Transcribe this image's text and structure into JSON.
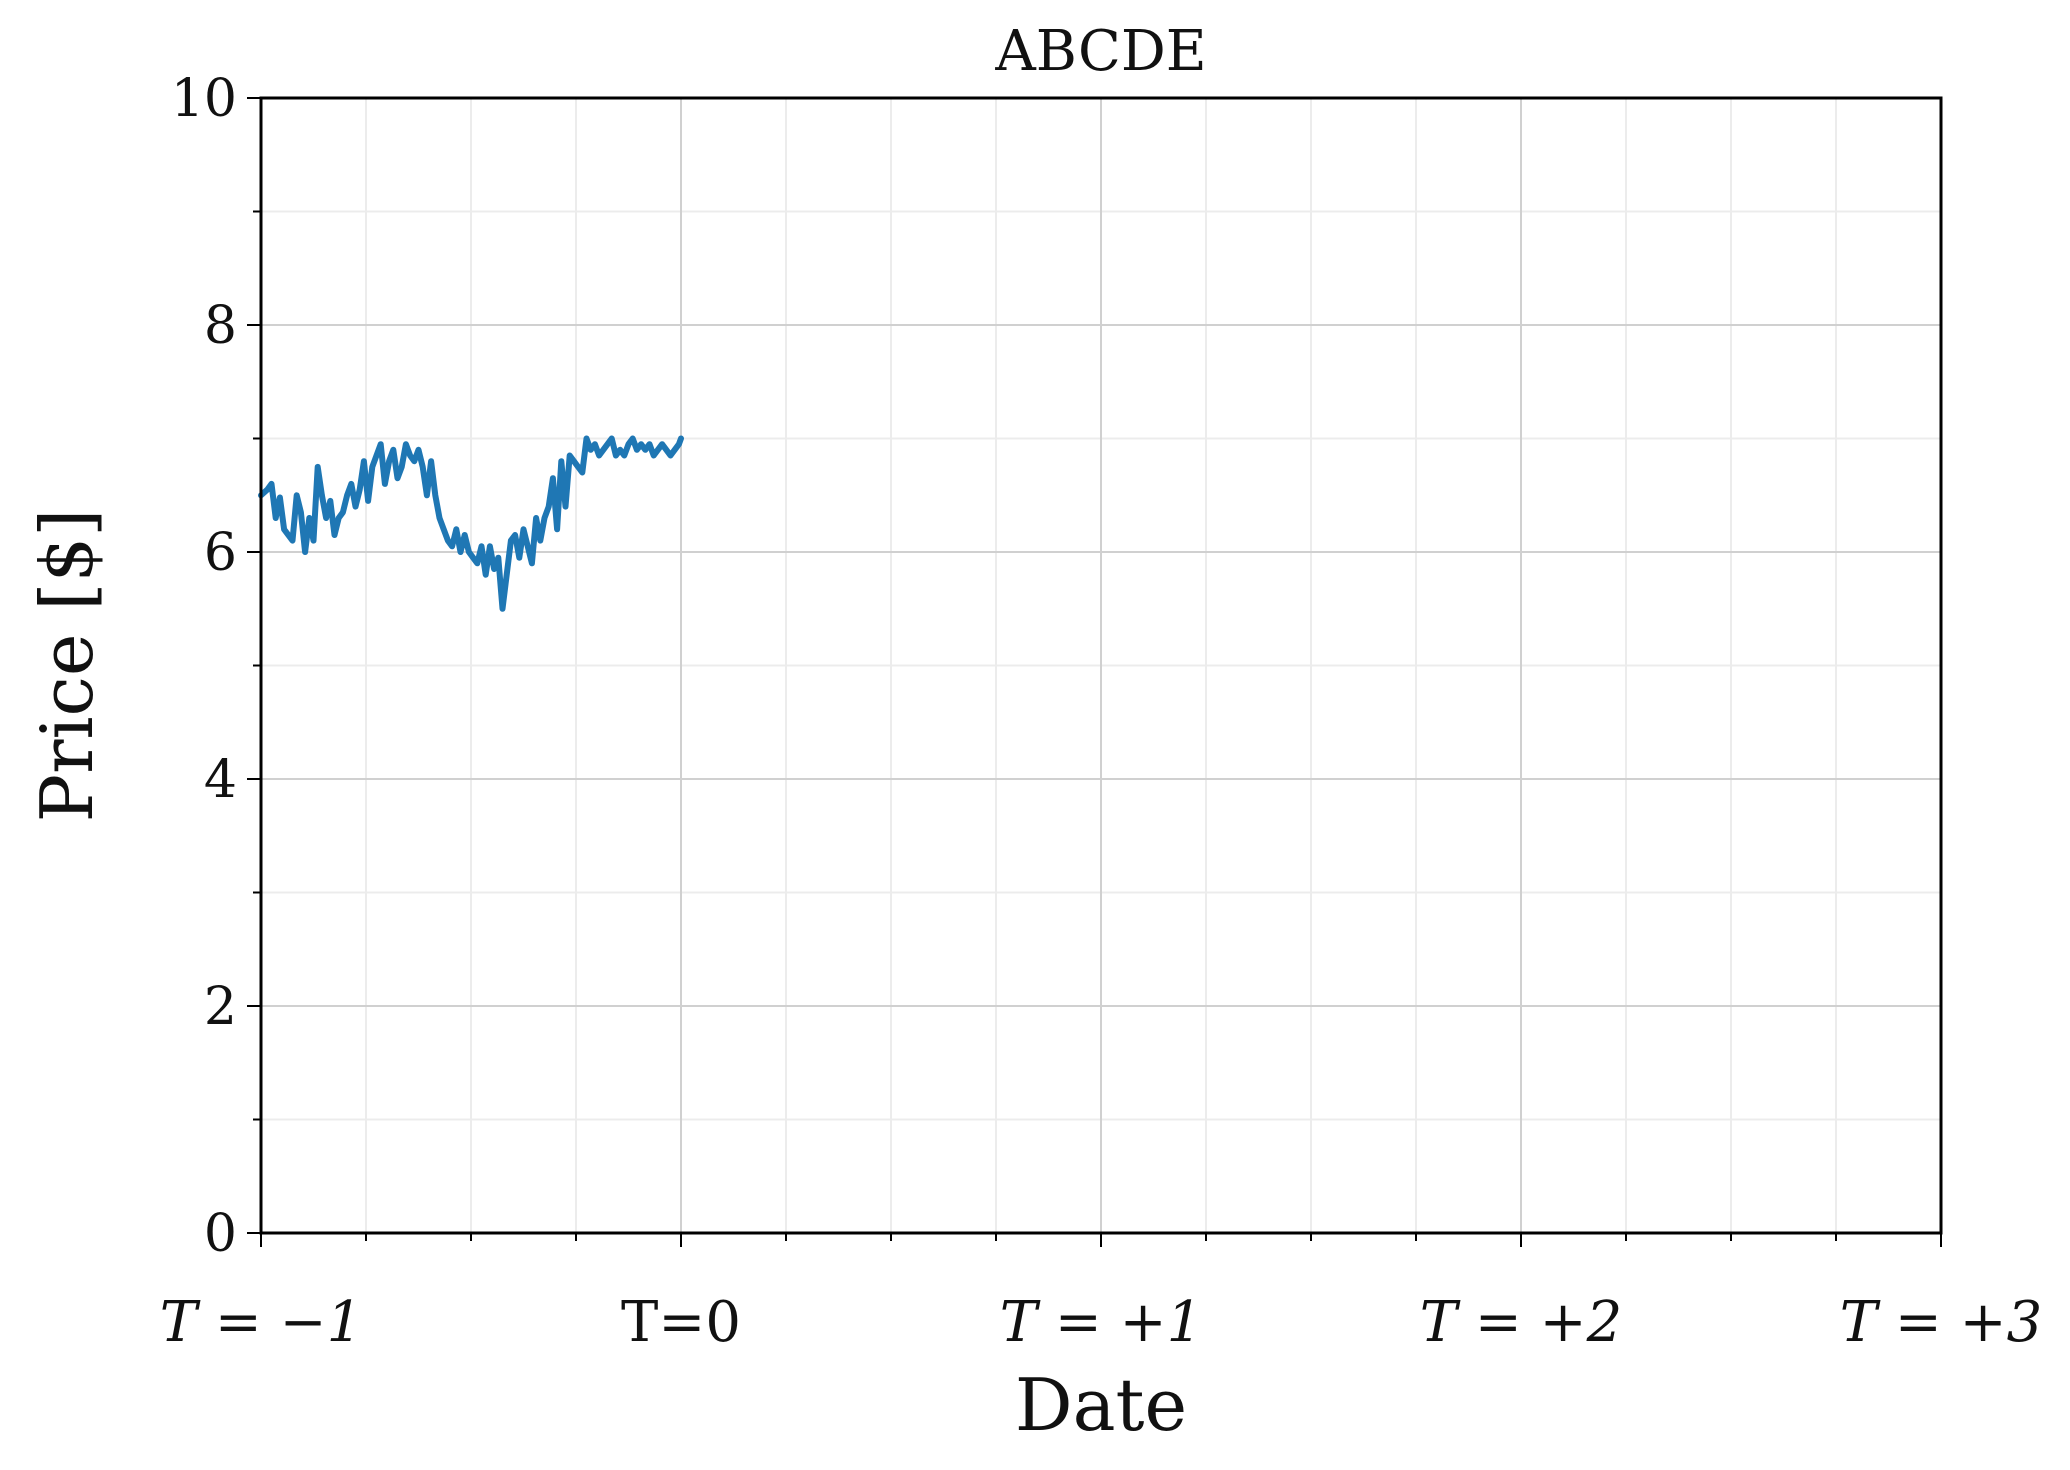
{
  "chart_data": {
    "type": "line",
    "title": "ABCDE",
    "xlabel": "Date",
    "ylabel": "Price [$]",
    "ylim": [
      0,
      10
    ],
    "xlim": [
      -1,
      3
    ],
    "yticks": [
      0,
      2,
      4,
      6,
      8,
      10
    ],
    "xticks": [
      {
        "value": -1,
        "label": "T = −1"
      },
      {
        "value": 0,
        "label": "T=0"
      },
      {
        "value": 1,
        "label": "T = +1"
      },
      {
        "value": 2,
        "label": "T = +2"
      },
      {
        "value": 3,
        "label": "T = +3"
      }
    ],
    "grid": true,
    "series": [
      {
        "color": "#1f77b4",
        "x": [
          -1.0,
          -0.985,
          -0.975,
          -0.965,
          -0.955,
          -0.945,
          -0.935,
          -0.925,
          -0.915,
          -0.905,
          -0.895,
          -0.885,
          -0.875,
          -0.865,
          -0.855,
          -0.845,
          -0.835,
          -0.825,
          -0.815,
          -0.805,
          -0.795,
          -0.785,
          -0.775,
          -0.765,
          -0.755,
          -0.745,
          -0.735,
          -0.725,
          -0.715,
          -0.705,
          -0.695,
          -0.685,
          -0.675,
          -0.665,
          -0.655,
          -0.645,
          -0.635,
          -0.625,
          -0.615,
          -0.605,
          -0.595,
          -0.585,
          -0.575,
          -0.565,
          -0.555,
          -0.545,
          -0.535,
          -0.525,
          -0.515,
          -0.505,
          -0.495,
          -0.485,
          -0.475,
          -0.465,
          -0.455,
          -0.445,
          -0.435,
          -0.425,
          -0.415,
          -0.405,
          -0.395,
          -0.385,
          -0.375,
          -0.365,
          -0.355,
          -0.345,
          -0.335,
          -0.325,
          -0.315,
          -0.305,
          -0.295,
          -0.285,
          -0.275,
          -0.265,
          -0.255,
          -0.245,
          -0.235,
          -0.225,
          -0.215,
          -0.205,
          -0.195,
          -0.185,
          -0.175,
          -0.165,
          -0.155,
          -0.145,
          -0.135,
          -0.125,
          -0.115,
          -0.105,
          -0.095,
          -0.085,
          -0.075,
          -0.065,
          -0.055,
          -0.045,
          -0.035,
          -0.025,
          -0.015,
          -0.005,
          0.0
        ],
        "y": [
          6.5,
          6.55,
          6.6,
          6.3,
          6.48,
          6.2,
          6.15,
          6.1,
          6.5,
          6.35,
          6.0,
          6.3,
          6.1,
          6.75,
          6.5,
          6.3,
          6.45,
          6.15,
          6.3,
          6.35,
          6.5,
          6.6,
          6.4,
          6.55,
          6.8,
          6.45,
          6.75,
          6.85,
          6.95,
          6.6,
          6.8,
          6.9,
          6.65,
          6.75,
          6.95,
          6.85,
          6.8,
          6.9,
          6.75,
          6.5,
          6.8,
          6.5,
          6.3,
          6.2,
          6.1,
          6.05,
          6.2,
          6.0,
          6.15,
          6.0,
          5.95,
          5.9,
          6.05,
          5.8,
          6.05,
          5.85,
          5.95,
          5.5,
          5.8,
          6.1,
          6.15,
          5.95,
          6.2,
          6.05,
          5.9,
          6.3,
          6.1,
          6.3,
          6.4,
          6.65,
          6.2,
          6.8,
          6.4,
          6.85,
          6.8,
          6.75,
          6.7,
          7.0,
          6.9,
          6.95,
          6.85,
          6.9,
          6.95,
          7.0,
          6.85,
          6.9,
          6.85,
          6.95,
          7.0,
          6.9,
          6.95,
          6.9,
          6.95,
          6.85,
          6.9,
          6.95,
          6.9,
          6.85,
          6.9,
          6.95,
          7.0
        ]
      }
    ]
  }
}
